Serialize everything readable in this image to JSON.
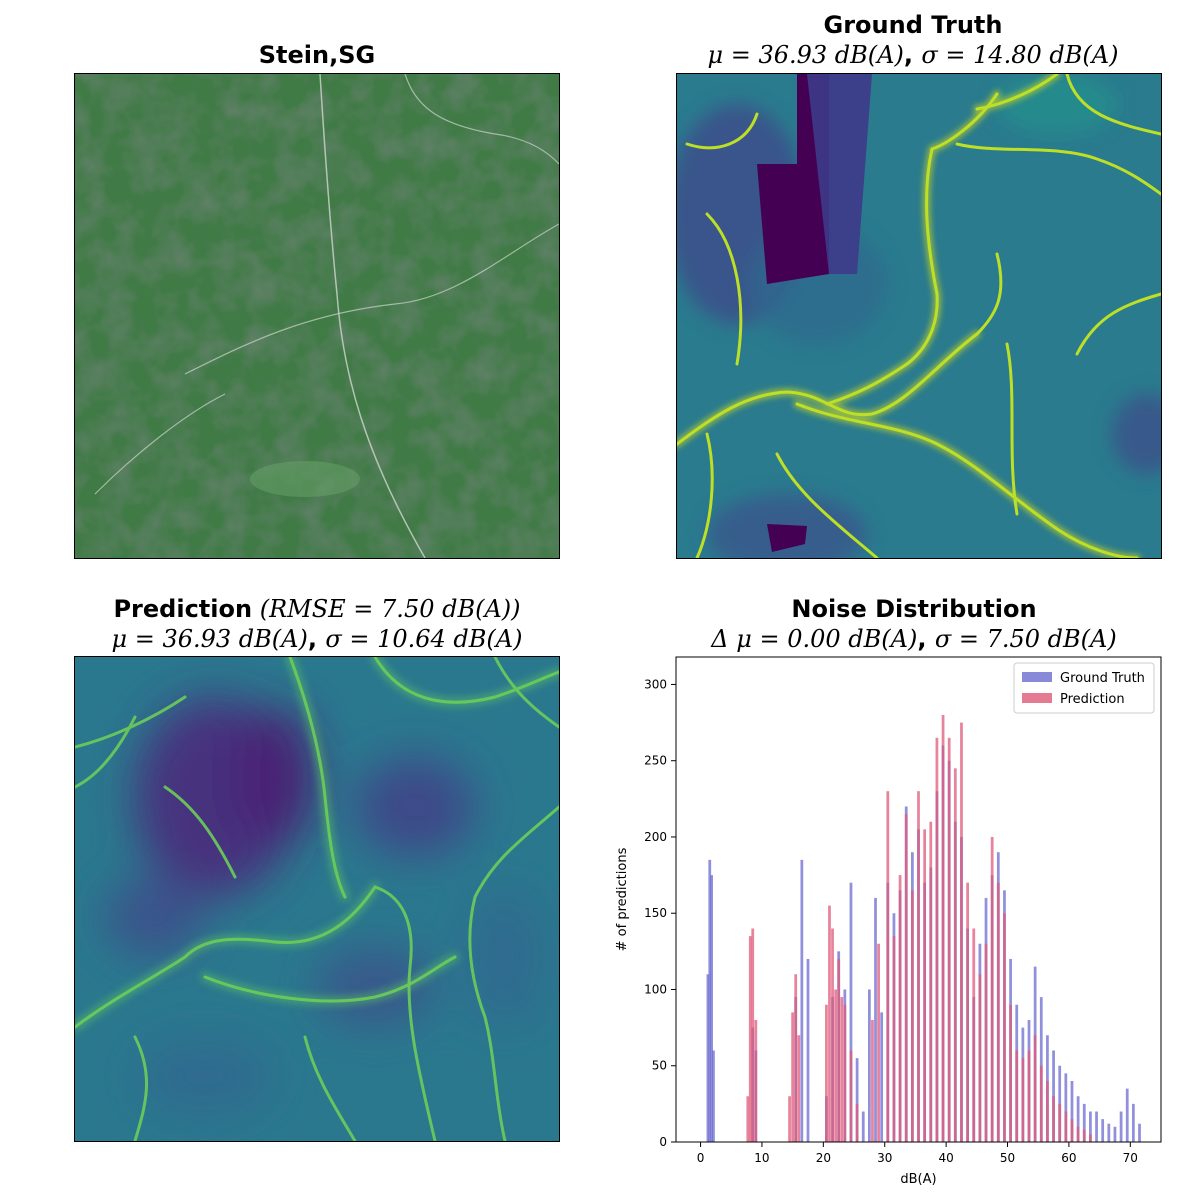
{
  "panels": {
    "satellite": {
      "title": "Stein,SG"
    },
    "ground_truth": {
      "title": "Ground Truth",
      "subtitle_mu": "μ = 36.93 dB(A)",
      "subtitle_sigma": "σ = 14.80 dB(A)"
    },
    "prediction": {
      "title": "Prediction",
      "title_rmse": "(RMSE = 7.50 dB(A))",
      "subtitle_mu": "μ = 36.93 dB(A)",
      "subtitle_sigma": "σ = 10.64 dB(A)"
    },
    "noise_distribution": {
      "title": "Noise Distribution",
      "subtitle_mu": "Δ μ = 0.00 dB(A)",
      "subtitle_sigma": "σ = 7.50 dB(A)"
    }
  },
  "colors": {
    "ground_truth": "#6b6bd0",
    "prediction": "#df5a78",
    "overlap": "#a8407a",
    "viridis_low": "#440154",
    "viridis_mid": "#2a7b8e",
    "viridis_high": "#dce319",
    "satellite_green": "#3f7a45"
  },
  "chart_data": {
    "type": "bar",
    "xlabel": "dB(A)",
    "ylabel": "# of predictions",
    "xlim": [
      -4,
      75
    ],
    "ylim": [
      0,
      318
    ],
    "xticks": [
      0,
      10,
      20,
      30,
      40,
      50,
      60,
      70
    ],
    "yticks": [
      0,
      50,
      100,
      150,
      200,
      250,
      300
    ],
    "legend_position": "top-right",
    "series": [
      {
        "name": "Ground Truth",
        "x": [
          1.2,
          1.5,
          1.8,
          2.1,
          8.5,
          9,
          15.5,
          16.5,
          17.5,
          20.5,
          21.5,
          22.5,
          23.5,
          24.5,
          25.5,
          26.5,
          27.5,
          28.5,
          29.5,
          30.5,
          31.5,
          32.5,
          33.5,
          34.5,
          35.5,
          36.5,
          37.5,
          38.5,
          39.5,
          40.5,
          41.5,
          42.5,
          43.5,
          44.5,
          45.5,
          46.5,
          47.5,
          48.5,
          49.5,
          50.5,
          51.5,
          52.5,
          53.5,
          54.5,
          55.5,
          56.5,
          57.5,
          58.5,
          59.5,
          60.5,
          61.5,
          62.5,
          63.5,
          64.5,
          65.5,
          66.5,
          67.5,
          68.5,
          69.5,
          70.5,
          71.5
        ],
        "values": [
          110,
          185,
          175,
          60,
          75,
          60,
          95,
          185,
          120,
          30,
          95,
          125,
          100,
          170,
          55,
          20,
          100,
          160,
          85,
          170,
          150,
          165,
          220,
          190,
          205,
          170,
          180,
          230,
          260,
          250,
          210,
          200,
          140,
          95,
          130,
          160,
          175,
          190,
          165,
          120,
          90,
          75,
          80,
          115,
          95,
          70,
          60,
          50,
          45,
          40,
          30,
          25,
          20,
          20,
          15,
          12,
          10,
          20,
          35,
          25,
          12
        ]
      },
      {
        "name": "Prediction",
        "x": [
          7.7,
          8.1,
          8.5,
          9,
          14.5,
          15,
          15.5,
          16,
          20.5,
          21,
          21.5,
          22,
          22.5,
          23,
          23.5,
          24.5,
          25.5,
          28,
          29,
          30.5,
          31.5,
          32.5,
          33.5,
          34.5,
          35.5,
          36.5,
          37.5,
          38.5,
          39.5,
          40.5,
          41.5,
          42.5,
          43.5,
          44.5,
          45.5,
          46.5,
          47.5,
          48.5,
          49.5,
          50.5,
          51.5,
          52.5,
          53.5,
          54.5,
          55.5,
          56.5,
          57.5,
          58.5,
          59.5,
          60.5,
          61.5,
          62.5,
          63.5
        ],
        "values": [
          30,
          135,
          140,
          80,
          30,
          85,
          110,
          70,
          90,
          155,
          140,
          100,
          120,
          95,
          90,
          60,
          25,
          80,
          130,
          230,
          135,
          175,
          215,
          165,
          230,
          205,
          210,
          265,
          280,
          265,
          245,
          275,
          170,
          140,
          110,
          130,
          200,
          170,
          150,
          90,
          60,
          55,
          60,
          70,
          50,
          40,
          30,
          25,
          20,
          15,
          10,
          8,
          5
        ]
      }
    ]
  }
}
